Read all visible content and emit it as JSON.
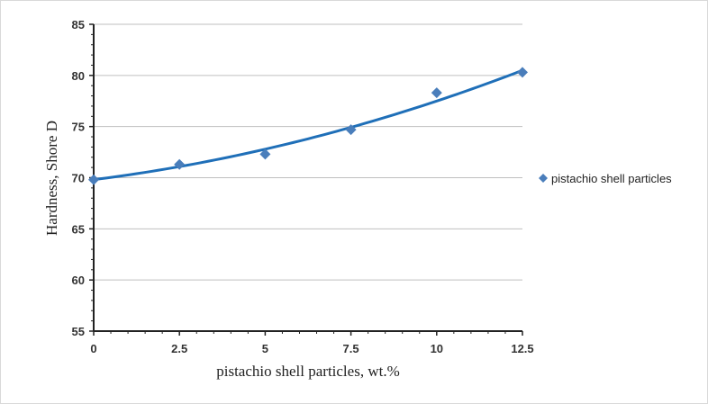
{
  "chart_data": {
    "type": "scatter",
    "xlabel": "pistachio shell particles, wt.%",
    "ylabel": "Hardness, Shore D",
    "xlim": [
      0,
      12.5
    ],
    "ylim": [
      55,
      85
    ],
    "x_ticks": [
      "0",
      "2.5",
      "5",
      "7.5",
      "10",
      "12.5"
    ],
    "y_ticks": [
      "55",
      "60",
      "65",
      "70",
      "75",
      "80",
      "85"
    ],
    "grid": "horizontal",
    "legend_position": "right",
    "series": [
      {
        "name": "pistachio shell particles",
        "marker": "diamond",
        "color": "#4a7ebb",
        "x": [
          0,
          2.5,
          5,
          7.5,
          10,
          12.5
        ],
        "y": [
          69.8,
          71.3,
          72.3,
          74.7,
          78.3,
          80.3
        ]
      }
    ],
    "trendline": {
      "type": "polynomial",
      "color": "#1f6fb8",
      "x": [
        0,
        2.5,
        5,
        7.5,
        10,
        12.5
      ],
      "y": [
        69.8,
        71.1,
        72.8,
        74.9,
        77.5,
        80.5
      ]
    }
  }
}
